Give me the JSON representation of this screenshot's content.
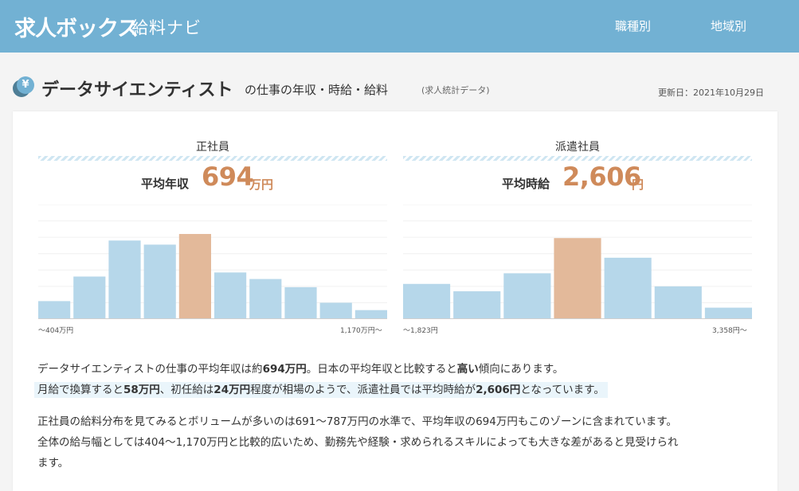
{
  "header": {
    "logo": "求人ボックス",
    "logo_sub": "給料ナビ",
    "nav": [
      "職種別",
      "地域別"
    ]
  },
  "title": {
    "icon": "yen-icon",
    "main": "データサイエンティスト",
    "rest": "の仕事の年収・時給・給料",
    "note": "(求人統計データ)",
    "updated": "更新日：2021年10月29日"
  },
  "panels": {
    "seishain": {
      "label": "正社員",
      "avg_label": "平均年収",
      "avg_value": "694",
      "avg_unit": "万円",
      "axis_min": "～404万円",
      "axis_max": "1,170万円～"
    },
    "haken": {
      "label": "派遣社員",
      "avg_label": "平均時給",
      "avg_value": "2,606",
      "avg_unit": "円",
      "axis_min": "～1,823円",
      "axis_max": "3,358円～"
    }
  },
  "chart_data": [
    {
      "type": "bar",
      "values": [
        22,
        52,
        96,
        91,
        104,
        57,
        49,
        39,
        20,
        11
      ],
      "highlight_index": 4,
      "ylim": [
        0,
        140
      ],
      "grid": true,
      "colors": {
        "bar": "#b6d7ea",
        "highlight": "#e3b99a"
      }
    },
    {
      "type": "bar",
      "values": [
        43,
        34,
        56,
        99,
        75,
        40,
        14
      ],
      "highlight_index": 3,
      "ylim": [
        0,
        140
      ],
      "grid": true,
      "colors": {
        "bar": "#b6d7ea",
        "highlight": "#e3b99a"
      }
    }
  ],
  "text": {
    "p1_l1": [
      "データサイエンティストの仕事の平均年収は約",
      "694万円",
      "。日本の平均年収と比較すると",
      "高い",
      "傾向にあります。"
    ],
    "p1_l2": [
      "月給で換算すると",
      "58万円",
      "、初任給は",
      "24万円",
      "程度が相場のようで、派遣社員では平均時給が",
      "2,606円",
      "となっています。"
    ],
    "p2_l1": "正社員の給料分布を見てみるとボリュームが多いのは691～787万円の水準で、平均年収の694万円もこのゾーンに含まれています。",
    "p2_l2": "全体の給与幅としては404～1,170万円と比較的広いため、勤務先や経験・求められるスキルによっても大きな差があると見受けられ",
    "p2_l3": "ます。"
  }
}
